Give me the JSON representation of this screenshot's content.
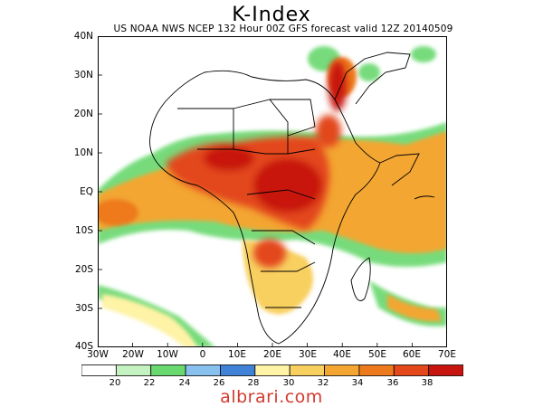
{
  "title": "K-Index",
  "subtitle": "US NOAA NWS NCEP 132 Hour 00Z GFS forecast valid 12Z 20140509",
  "lat_labels": [
    "40N",
    "30N",
    "20N",
    "10N",
    "EQ",
    "10S",
    "20S",
    "30S",
    "40S"
  ],
  "lon_labels": [
    "30W",
    "20W",
    "10W",
    "0",
    "10E",
    "20E",
    "30E",
    "40E",
    "50E",
    "60E",
    "70E"
  ],
  "colorbar": {
    "colors": [
      "#ffffff",
      "#c4f2c0",
      "#69d86e",
      "#88c1ee",
      "#3f82d8",
      "#fff3a6",
      "#f8d060",
      "#f3a632",
      "#ee7a1e",
      "#e3471a",
      "#c8140f"
    ],
    "labels": [
      "20",
      "22",
      "24",
      "26",
      "28",
      "30",
      "32",
      "34",
      "36",
      "38"
    ]
  },
  "watermark": "albrari.com"
}
